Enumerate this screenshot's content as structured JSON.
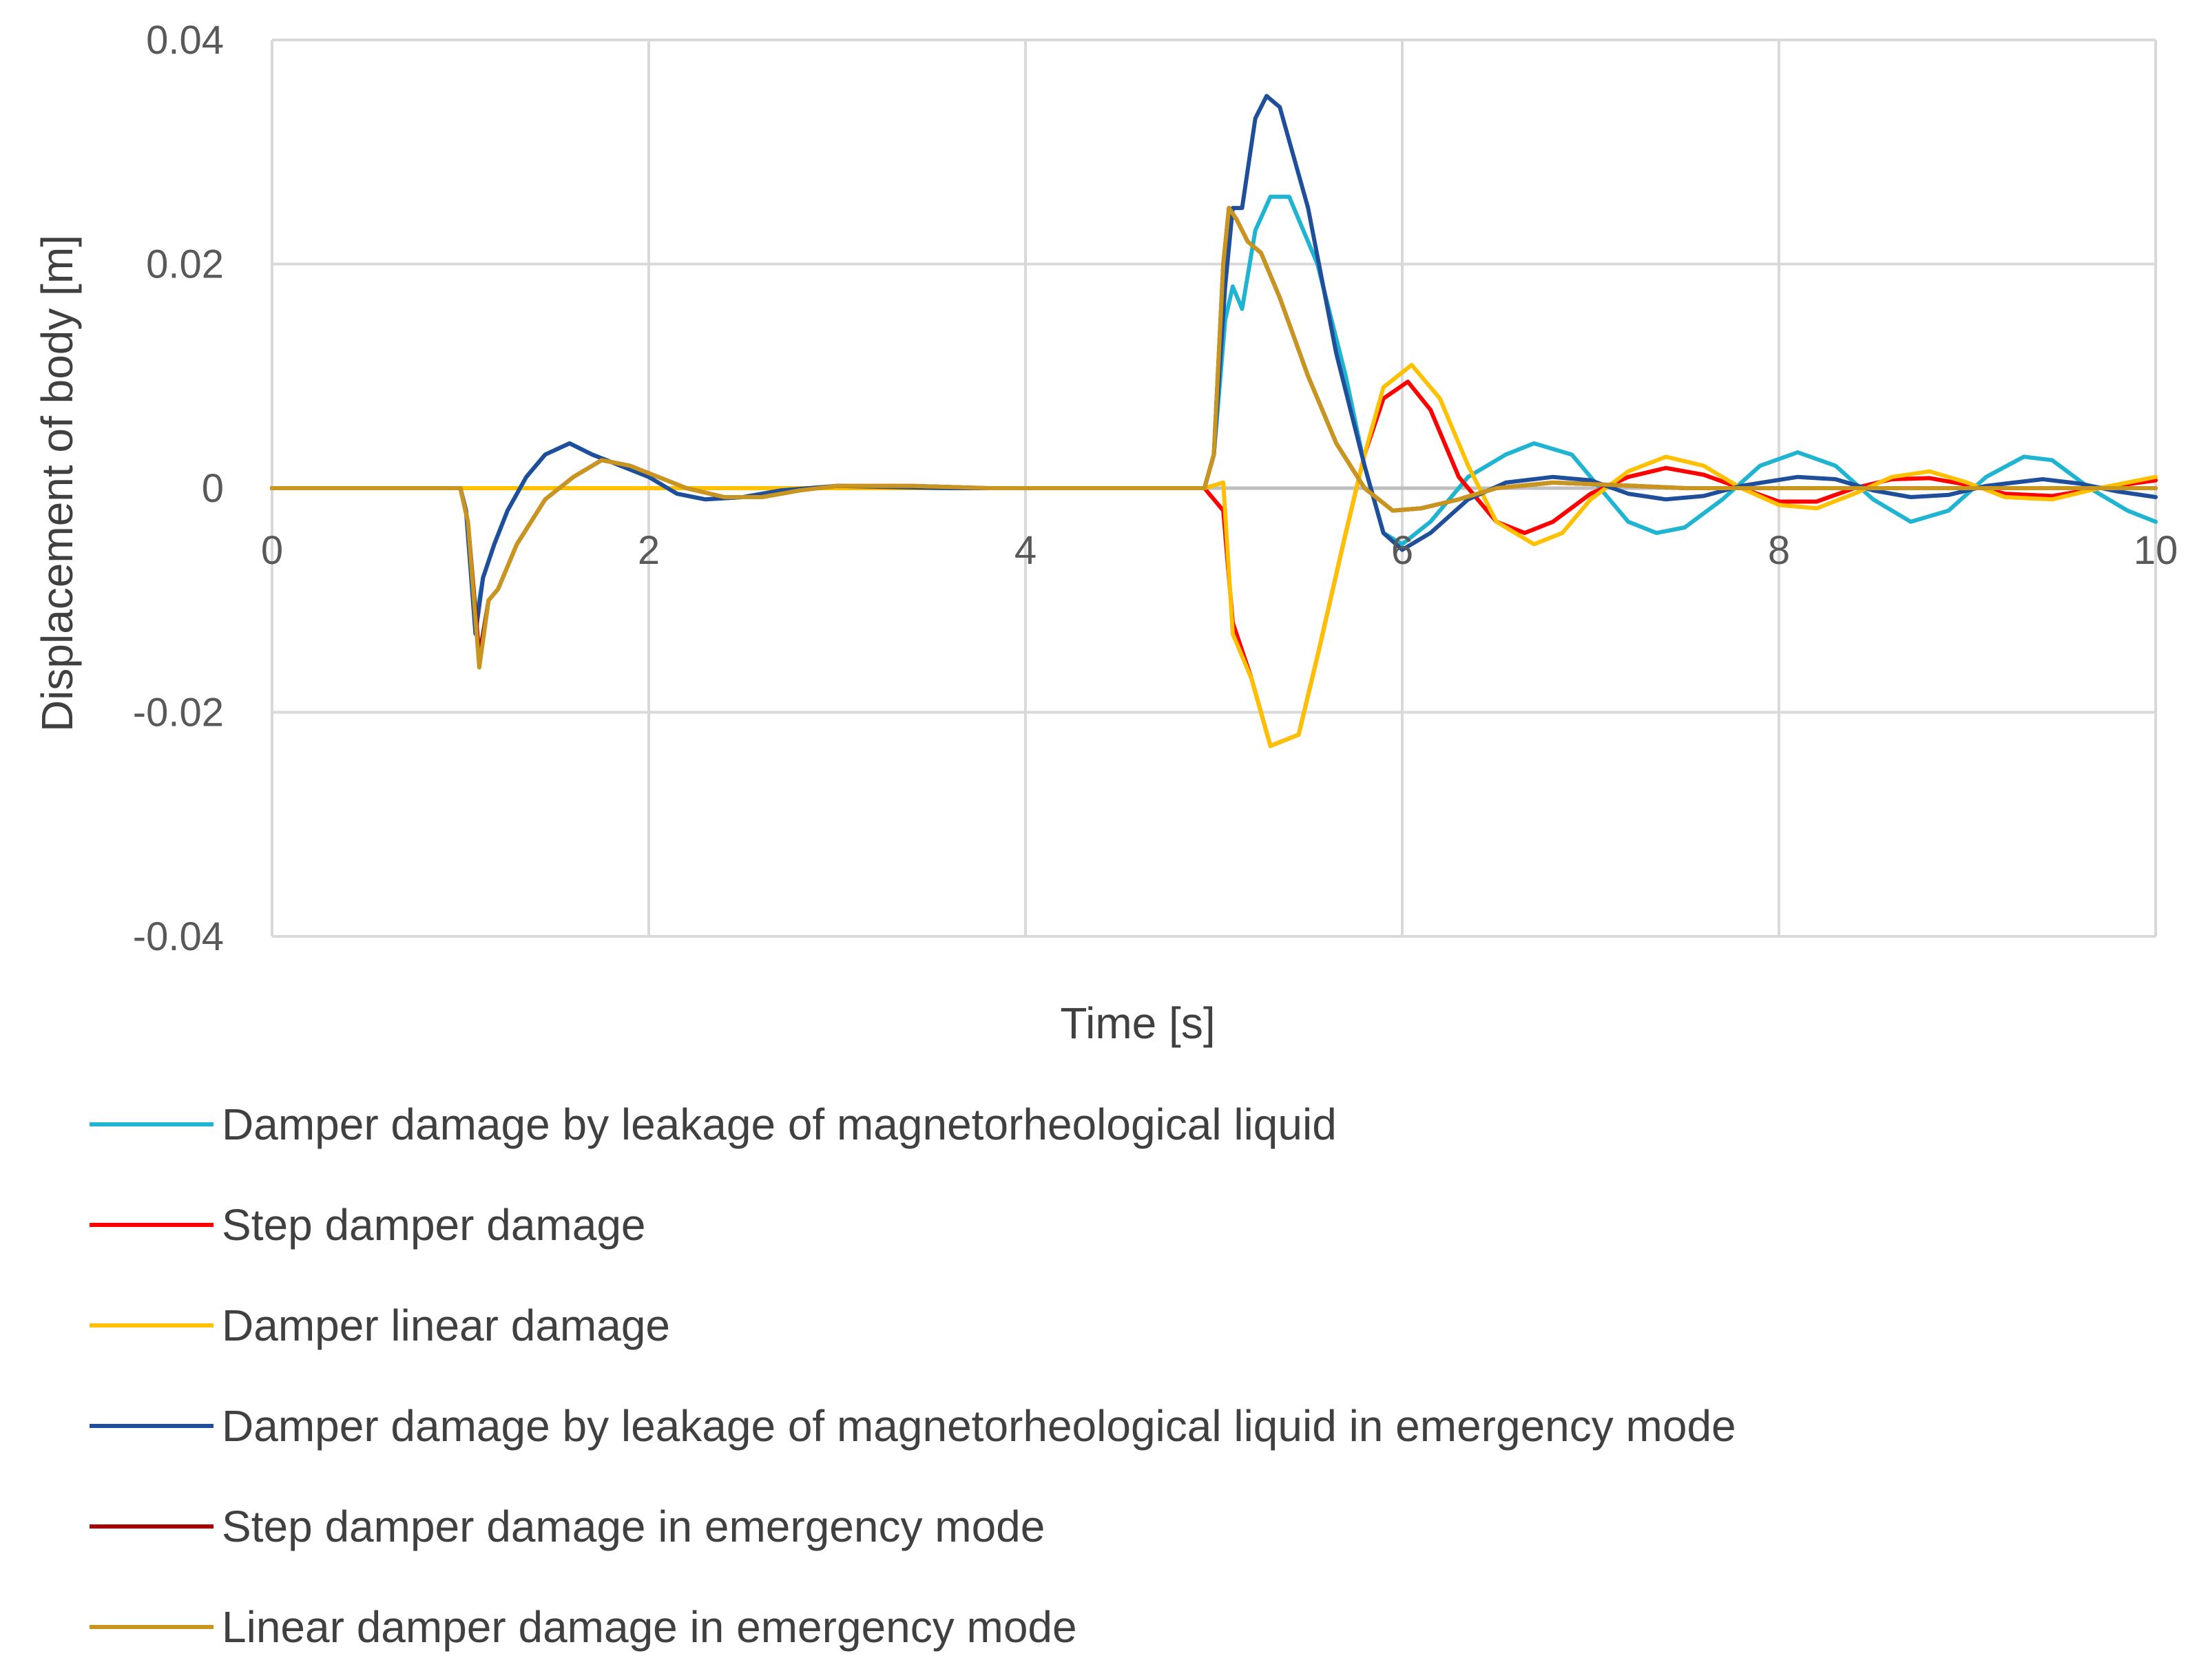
{
  "chart_data": {
    "type": "line",
    "title": "",
    "xlabel": "Time [s]",
    "ylabel": "Displacement of body [m]",
    "xlim": [
      0,
      10
    ],
    "ylim": [
      -0.04,
      0.04
    ],
    "x_ticks": [
      "0",
      "2",
      "4",
      "6",
      "8",
      "10"
    ],
    "y_ticks": [
      "0.04",
      "0.02",
      "0",
      "-0.02",
      "-0.04"
    ],
    "grid": true,
    "legend_position": "bottom",
    "series": [
      {
        "name": "Damper damage by leakage of magnetorheological liquid",
        "color": "#1EB4D2",
        "points": [
          [
            0,
            0
          ],
          [
            1.0,
            0
          ],
          [
            1.03,
            -0.002
          ],
          [
            1.08,
            -0.012
          ],
          [
            1.12,
            -0.008
          ],
          [
            1.18,
            -0.005
          ],
          [
            1.25,
            -0.002
          ],
          [
            1.35,
            0.001
          ],
          [
            1.45,
            0.003
          ],
          [
            1.58,
            0.004
          ],
          [
            1.7,
            0.003
          ],
          [
            1.85,
            0.002
          ],
          [
            2.0,
            0.001
          ],
          [
            2.15,
            -0.0005
          ],
          [
            2.3,
            -0.001
          ],
          [
            2.5,
            -0.0008
          ],
          [
            2.7,
            -0.0002
          ],
          [
            3.0,
            0.0002
          ],
          [
            3.3,
            0.0001
          ],
          [
            3.6,
            0
          ],
          [
            4.0,
            0
          ],
          [
            4.95,
            0
          ],
          [
            5.0,
            0.003
          ],
          [
            5.06,
            0.015
          ],
          [
            5.1,
            0.018
          ],
          [
            5.15,
            0.016
          ],
          [
            5.22,
            0.023
          ],
          [
            5.3,
            0.026
          ],
          [
            5.4,
            0.026
          ],
          [
            5.55,
            0.02
          ],
          [
            5.7,
            0.01
          ],
          [
            5.8,
            0.002
          ],
          [
            5.9,
            -0.004
          ],
          [
            6.0,
            -0.005
          ],
          [
            6.15,
            -0.003
          ],
          [
            6.35,
            0.001
          ],
          [
            6.55,
            0.003
          ],
          [
            6.7,
            0.004
          ],
          [
            6.9,
            0.003
          ],
          [
            7.05,
            0.0
          ],
          [
            7.2,
            -0.003
          ],
          [
            7.35,
            -0.004
          ],
          [
            7.5,
            -0.0035
          ],
          [
            7.7,
            -0.001
          ],
          [
            7.9,
            0.002
          ],
          [
            8.1,
            0.0032
          ],
          [
            8.3,
            0.002
          ],
          [
            8.5,
            -0.001
          ],
          [
            8.7,
            -0.003
          ],
          [
            8.9,
            -0.002
          ],
          [
            9.1,
            0.001
          ],
          [
            9.3,
            0.0028
          ],
          [
            9.45,
            0.0025
          ],
          [
            9.65,
            0.0
          ],
          [
            9.85,
            -0.002
          ],
          [
            10.0,
            -0.003
          ]
        ]
      },
      {
        "name": "Step damper damage",
        "color": "#FF0000",
        "points": [
          [
            0,
            0
          ],
          [
            4.95,
            0
          ],
          [
            5.05,
            -0.002
          ],
          [
            5.1,
            -0.012
          ],
          [
            5.2,
            -0.017
          ],
          [
            5.3,
            -0.023
          ],
          [
            5.45,
            -0.022
          ],
          [
            5.55,
            -0.015
          ],
          [
            5.7,
            -0.004
          ],
          [
            5.8,
            0.003
          ],
          [
            5.9,
            0.008
          ],
          [
            6.03,
            0.0095
          ],
          [
            6.15,
            0.007
          ],
          [
            6.3,
            0.001
          ],
          [
            6.5,
            -0.003
          ],
          [
            6.65,
            -0.004
          ],
          [
            6.8,
            -0.003
          ],
          [
            7.0,
            -0.0005
          ],
          [
            7.2,
            0.001
          ],
          [
            7.4,
            0.0018
          ],
          [
            7.6,
            0.0012
          ],
          [
            7.8,
            0
          ],
          [
            8.0,
            -0.0012
          ],
          [
            8.2,
            -0.0012
          ],
          [
            8.4,
            0
          ],
          [
            8.6,
            0.0008
          ],
          [
            8.8,
            0.0009
          ],
          [
            9.0,
            0.0003
          ],
          [
            9.2,
            -0.0005
          ],
          [
            9.45,
            -0.0007
          ],
          [
            9.7,
            0
          ],
          [
            10.0,
            0.0007
          ]
        ]
      },
      {
        "name": "Damper linear damage",
        "color": "#FFC000",
        "points": [
          [
            0,
            0
          ],
          [
            4.95,
            0
          ],
          [
            5.05,
            0.0005
          ],
          [
            5.1,
            -0.013
          ],
          [
            5.2,
            -0.017
          ],
          [
            5.3,
            -0.023
          ],
          [
            5.45,
            -0.022
          ],
          [
            5.55,
            -0.015
          ],
          [
            5.7,
            -0.004
          ],
          [
            5.8,
            0.003
          ],
          [
            5.9,
            0.009
          ],
          [
            6.05,
            0.011
          ],
          [
            6.2,
            0.008
          ],
          [
            6.35,
            0.002
          ],
          [
            6.5,
            -0.003
          ],
          [
            6.7,
            -0.005
          ],
          [
            6.85,
            -0.004
          ],
          [
            7.0,
            -0.001
          ],
          [
            7.2,
            0.0015
          ],
          [
            7.4,
            0.0028
          ],
          [
            7.6,
            0.002
          ],
          [
            7.8,
            0.0
          ],
          [
            8.0,
            -0.0015
          ],
          [
            8.2,
            -0.0018
          ],
          [
            8.4,
            -0.0005
          ],
          [
            8.6,
            0.001
          ],
          [
            8.8,
            0.0015
          ],
          [
            9.0,
            0.0005
          ],
          [
            9.2,
            -0.0008
          ],
          [
            9.45,
            -0.001
          ],
          [
            9.7,
            0
          ],
          [
            10.0,
            0.001
          ]
        ]
      },
      {
        "name": "Damper damage by leakage of magnetorheological liquid in emergency mode",
        "color": "#1F4E9A",
        "points": [
          [
            0,
            0
          ],
          [
            1.0,
            0
          ],
          [
            1.03,
            -0.002
          ],
          [
            1.08,
            -0.013
          ],
          [
            1.12,
            -0.008
          ],
          [
            1.18,
            -0.005
          ],
          [
            1.25,
            -0.002
          ],
          [
            1.35,
            0.001
          ],
          [
            1.45,
            0.003
          ],
          [
            1.58,
            0.004
          ],
          [
            1.7,
            0.003
          ],
          [
            1.85,
            0.002
          ],
          [
            2.0,
            0.001
          ],
          [
            2.15,
            -0.0005
          ],
          [
            2.3,
            -0.001
          ],
          [
            2.5,
            -0.0008
          ],
          [
            2.7,
            -0.0002
          ],
          [
            3.0,
            0.0002
          ],
          [
            3.3,
            0.0001
          ],
          [
            3.6,
            0
          ],
          [
            4.0,
            0
          ],
          [
            4.95,
            0
          ],
          [
            5.0,
            0.003
          ],
          [
            5.06,
            0.018
          ],
          [
            5.1,
            0.025
          ],
          [
            5.15,
            0.025
          ],
          [
            5.22,
            0.033
          ],
          [
            5.28,
            0.035
          ],
          [
            5.35,
            0.034
          ],
          [
            5.5,
            0.025
          ],
          [
            5.65,
            0.012
          ],
          [
            5.8,
            0.002
          ],
          [
            5.9,
            -0.004
          ],
          [
            6.0,
            -0.0055
          ],
          [
            6.15,
            -0.004
          ],
          [
            6.35,
            -0.001
          ],
          [
            6.55,
            0.0005
          ],
          [
            6.8,
            0.001
          ],
          [
            7.0,
            0.0007
          ],
          [
            7.2,
            -0.0005
          ],
          [
            7.4,
            -0.001
          ],
          [
            7.6,
            -0.0007
          ],
          [
            7.8,
            0.0002
          ],
          [
            8.1,
            0.001
          ],
          [
            8.3,
            0.0008
          ],
          [
            8.5,
            -0.0002
          ],
          [
            8.7,
            -0.0008
          ],
          [
            8.9,
            -0.0006
          ],
          [
            9.1,
            0.0002
          ],
          [
            9.4,
            0.0008
          ],
          [
            9.6,
            0.0004
          ],
          [
            9.8,
            -0.0003
          ],
          [
            10.0,
            -0.0008
          ]
        ]
      },
      {
        "name": "Step damper damage in emergency mode",
        "color": "#A00000",
        "points": [
          [
            0,
            0
          ],
          [
            1.0,
            0
          ],
          [
            1.04,
            -0.003
          ],
          [
            1.1,
            -0.015
          ],
          [
            1.15,
            -0.01
          ],
          [
            1.2,
            -0.009
          ],
          [
            1.3,
            -0.005
          ],
          [
            1.45,
            -0.001
          ],
          [
            1.6,
            0.001
          ],
          [
            1.75,
            0.0025
          ],
          [
            1.9,
            0.002
          ],
          [
            2.05,
            0.001
          ],
          [
            2.2,
            0
          ],
          [
            2.4,
            -0.0008
          ],
          [
            2.6,
            -0.0008
          ],
          [
            2.8,
            -0.0002
          ],
          [
            3.0,
            0.0002
          ],
          [
            3.4,
            0.0002
          ],
          [
            3.8,
            0
          ],
          [
            4.95,
            0
          ],
          [
            5.0,
            0.003
          ],
          [
            5.05,
            0.02
          ],
          [
            5.08,
            0.025
          ],
          [
            5.12,
            0.024
          ],
          [
            5.18,
            0.022
          ],
          [
            5.25,
            0.021
          ],
          [
            5.35,
            0.017
          ],
          [
            5.5,
            0.01
          ],
          [
            5.65,
            0.004
          ],
          [
            5.8,
            0.0
          ],
          [
            5.95,
            -0.002
          ],
          [
            6.1,
            -0.0018
          ],
          [
            6.3,
            -0.001
          ],
          [
            6.5,
            0
          ],
          [
            6.8,
            0.0005
          ],
          [
            7.1,
            0.0003
          ],
          [
            7.5,
            0
          ],
          [
            10.0,
            0
          ]
        ]
      },
      {
        "name": "Linear damper damage in emergency mode",
        "color": "#C8961E",
        "points": [
          [
            0,
            0
          ],
          [
            1.0,
            0
          ],
          [
            1.04,
            -0.003
          ],
          [
            1.1,
            -0.016
          ],
          [
            1.15,
            -0.01
          ],
          [
            1.2,
            -0.009
          ],
          [
            1.3,
            -0.005
          ],
          [
            1.45,
            -0.001
          ],
          [
            1.6,
            0.001
          ],
          [
            1.75,
            0.0025
          ],
          [
            1.9,
            0.002
          ],
          [
            2.05,
            0.001
          ],
          [
            2.2,
            0
          ],
          [
            2.4,
            -0.0008
          ],
          [
            2.6,
            -0.0008
          ],
          [
            2.8,
            -0.0002
          ],
          [
            3.0,
            0.0002
          ],
          [
            3.4,
            0.0002
          ],
          [
            3.8,
            0
          ],
          [
            4.95,
            0
          ],
          [
            5.0,
            0.003
          ],
          [
            5.05,
            0.02
          ],
          [
            5.08,
            0.025
          ],
          [
            5.12,
            0.024
          ],
          [
            5.18,
            0.022
          ],
          [
            5.25,
            0.021
          ],
          [
            5.35,
            0.017
          ],
          [
            5.5,
            0.01
          ],
          [
            5.65,
            0.004
          ],
          [
            5.8,
            0.0
          ],
          [
            5.95,
            -0.002
          ],
          [
            6.1,
            -0.0018
          ],
          [
            6.3,
            -0.001
          ],
          [
            6.5,
            0
          ],
          [
            6.8,
            0.0005
          ],
          [
            7.1,
            0.0003
          ],
          [
            7.5,
            0
          ],
          [
            10.0,
            0
          ]
        ]
      }
    ]
  }
}
